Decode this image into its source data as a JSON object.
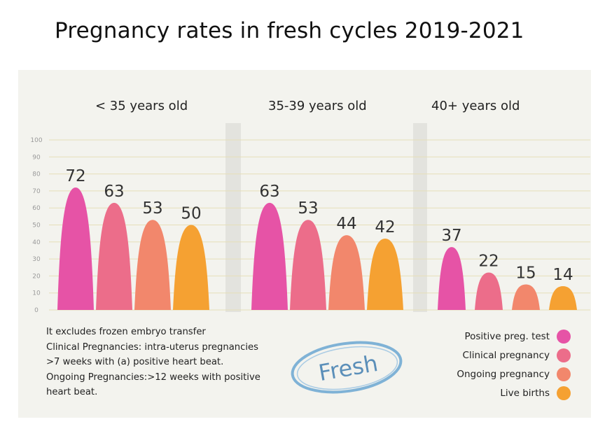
{
  "title": "Pregnancy rates in fresh cycles 2019-2021",
  "chart_data": {
    "type": "bar",
    "title": "Pregnancy rates in fresh cycles 2019-2021",
    "categories": [
      "< 35 years old",
      "35-39 years old",
      "40+ years old"
    ],
    "series": [
      {
        "name": "Positive preg. test",
        "color": "#e653a6",
        "values": [
          72,
          63,
          37
        ]
      },
      {
        "name": "Clinical pregnancy",
        "color": "#ec6d8a",
        "values": [
          63,
          53,
          22
        ]
      },
      {
        "name": "Ongoing pregnancy",
        "color": "#f2876c",
        "values": [
          53,
          44,
          15
        ]
      },
      {
        "name": "Live births",
        "color": "#f5a132",
        "values": [
          50,
          42,
          14
        ]
      }
    ],
    "ylim": [
      0,
      100
    ],
    "yticks": [
      0,
      10,
      20,
      30,
      40,
      50,
      60,
      70,
      80,
      90,
      100
    ],
    "grid": true,
    "legend_position": "bottom-right"
  },
  "notes": [
    "It excludes frozen embryo transfer",
    "Clinical Pregnancies: intra-uterus pregnancies",
    ">7 weeks with (a) positive heart beat.",
    "Ongoing Pregnancies:>12 weeks with positive",
    "heart beat."
  ],
  "stamp": "Fresh"
}
